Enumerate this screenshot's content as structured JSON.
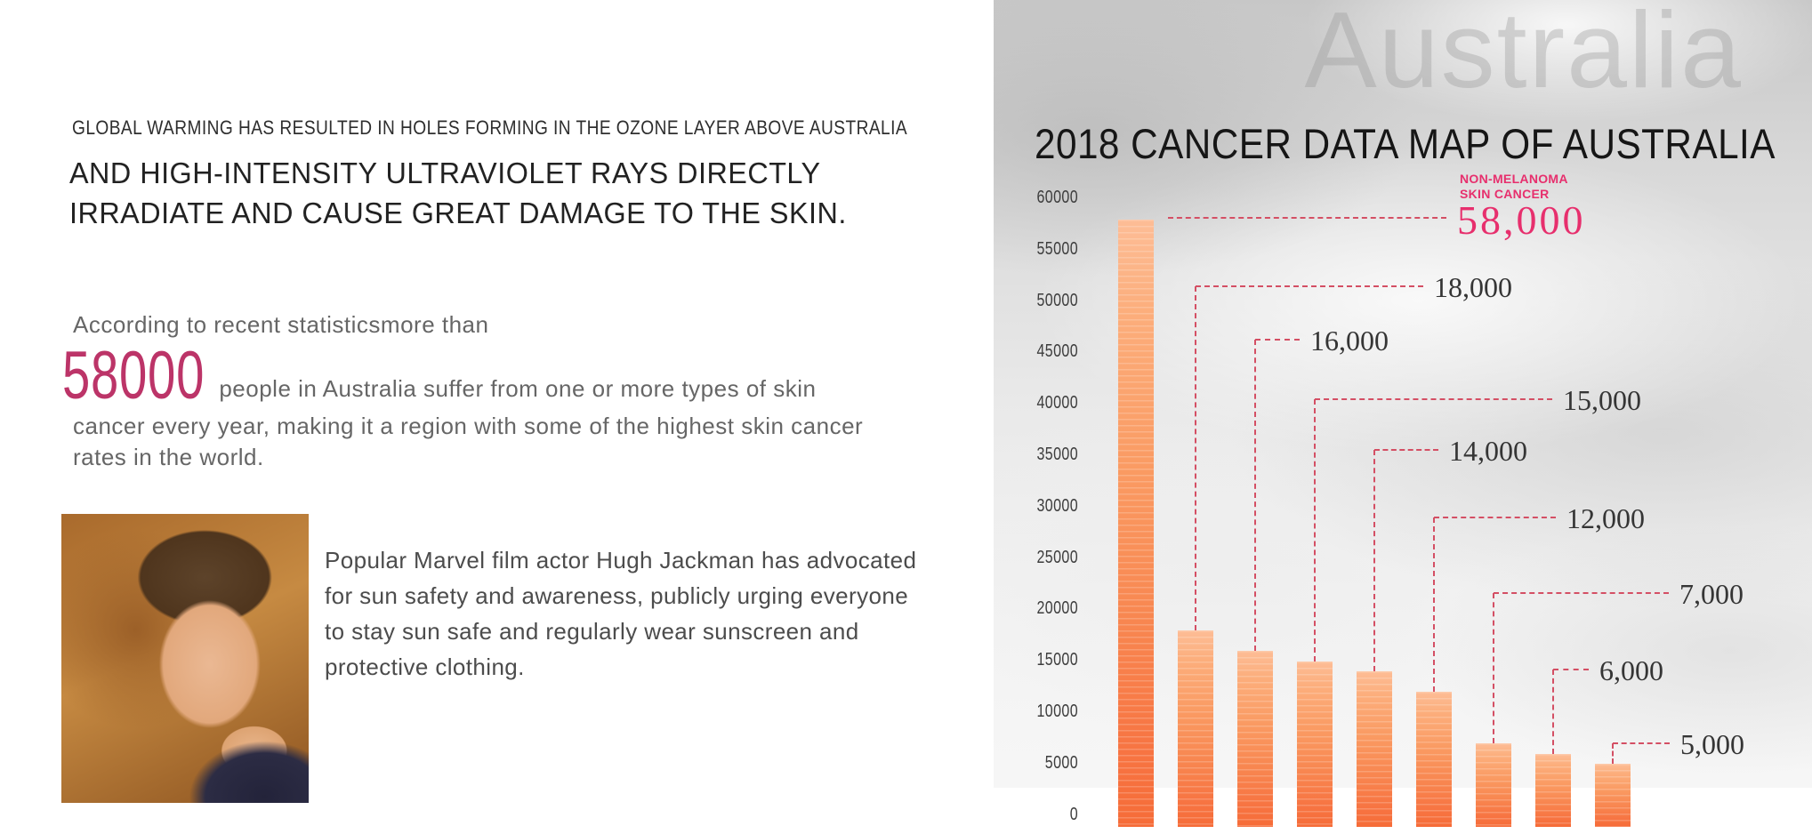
{
  "left_panel": {
    "intro": "GLOBAL WARMING HAS RESULTED IN HOLES FORMING IN THE OZONE LAYER ABOVE AUSTRALIA",
    "headline_lines": [
      "AND HIGH-INTENSITY ULTRAVIOLET RAYS DIRECTLY",
      "IRRADIATE AND CAUSE GREAT DAMAGE TO THE SKIN."
    ],
    "stat_lead": "According to recent statisticsmore than",
    "stat_number": "58000",
    "stat_number_color": "#bc3468",
    "stat_after": "people in Australia suffer from one or more types of skin",
    "stat_lines": [
      "cancer every year, making it a region with some of the highest skin cancer",
      "rates in the world."
    ],
    "photo": {
      "alt": "Hugh Jackman smiling, chin resting on hand, gold ring, warm brown background"
    },
    "caption_lines": [
      "Popular Marvel film actor Hugh Jackman has advocated",
      "for sun safety and awareness, publicly urging everyone",
      "to stay sun safe and regularly wear sunscreen and",
      "protective clothing."
    ]
  },
  "chart_data": {
    "type": "bar",
    "title": "2018 CANCER DATA MAP OF AUSTRALIA",
    "watermark": "Australia",
    "values": [
      58000,
      18000,
      16000,
      15000,
      14000,
      12000,
      7000,
      6000,
      5000
    ],
    "value_labels": [
      "58,000",
      "18,000",
      "16,000",
      "15,000",
      "14,000",
      "12,000",
      "7,000",
      "6,000",
      "5,000"
    ],
    "highlight_index": 0,
    "highlight_category_lines": [
      "NON-MELANOMA",
      "SKIN CANCER"
    ],
    "y_ticks": [
      "60000",
      "55000",
      "50000",
      "45000",
      "40000",
      "35000",
      "30000",
      "25000",
      "20000",
      "15000",
      "10000",
      "5000",
      "0"
    ],
    "ylim": [
      0,
      60000
    ],
    "grid": false,
    "legend": false,
    "colors": {
      "bar_top": "#fdbd96",
      "bar_bottom": "#f66c38",
      "callout_line": "#d44f64",
      "highlight_text": "#e72f6d",
      "value_text": "#353535",
      "tick_text": "#3d3d3d",
      "title_text": "#161616"
    }
  }
}
